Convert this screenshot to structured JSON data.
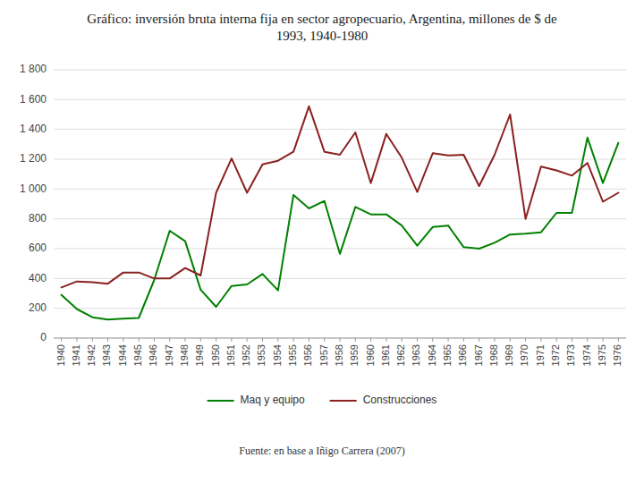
{
  "chart_data": {
    "type": "line",
    "title": "Gráfico: inversión bruta interna fija en sector agropecuario, Argentina, millones de $ de\n1993, 1940-1980",
    "footnote": "Fuente: en base a Iñigo Carrera (2007)",
    "x": [
      1940,
      1941,
      1942,
      1943,
      1944,
      1945,
      1946,
      1947,
      1948,
      1949,
      1950,
      1951,
      1952,
      1953,
      1954,
      1955,
      1956,
      1957,
      1958,
      1959,
      1960,
      1961,
      1962,
      1963,
      1964,
      1965,
      1966,
      1967,
      1968,
      1969,
      1970,
      1971,
      1972,
      1973,
      1974,
      1975,
      1976
    ],
    "series": [
      {
        "name": "Maq y equipo",
        "color": "#008000",
        "values": [
          290,
          195,
          140,
          125,
          130,
          135,
          390,
          720,
          650,
          325,
          210,
          350,
          360,
          430,
          320,
          960,
          870,
          920,
          565,
          880,
          830,
          830,
          755,
          620,
          745,
          755,
          610,
          600,
          640,
          695,
          700,
          710,
          840,
          840,
          1345,
          1040,
          1310
        ]
      },
      {
        "name": "Construcciones",
        "color": "#8B2020",
        "values": [
          340,
          380,
          375,
          365,
          440,
          440,
          400,
          400,
          470,
          420,
          975,
          1205,
          975,
          1165,
          1190,
          1250,
          1555,
          1250,
          1230,
          1380,
          1040,
          1370,
          1210,
          980,
          1240,
          1225,
          1230,
          1020,
          1230,
          1500,
          800,
          1150,
          1125,
          1090,
          1175,
          915,
          975
        ]
      }
    ],
    "xlim": [
      1939.5,
      1976.5
    ],
    "xticks": [
      1940,
      1941,
      1942,
      1943,
      1944,
      1945,
      1946,
      1947,
      1948,
      1949,
      1950,
      1951,
      1952,
      1953,
      1954,
      1955,
      1956,
      1957,
      1958,
      1959,
      1960,
      1961,
      1962,
      1963,
      1964,
      1965,
      1966,
      1967,
      1968,
      1969,
      1970,
      1971,
      1972,
      1973,
      1974,
      1975,
      1976
    ],
    "ylim": [
      0,
      1800
    ],
    "yticks": [
      0,
      200,
      400,
      600,
      800,
      {
        "value": 1000,
        "label": "1 000"
      },
      {
        "value": 1200,
        "label": "1 200"
      },
      {
        "value": 1400,
        "label": "1 400"
      },
      {
        "value": 1600,
        "label": "1 600"
      },
      {
        "value": 1800,
        "label": "1 800"
      }
    ],
    "grid": true,
    "legend": "bottom"
  }
}
